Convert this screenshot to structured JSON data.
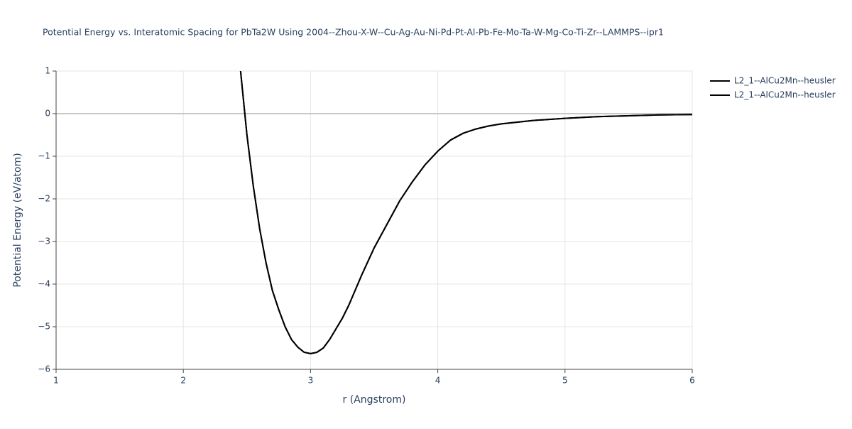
{
  "chart_data": {
    "type": "line",
    "title": "Potential Energy vs. Interatomic Spacing for PbTa2W Using 2004--Zhou-X-W--Cu-Ag-Au-Ni-Pd-Pt-Al-Pb-Fe-Mo-Ta-W-Mg-Co-Ti-Zr--LAMMPS--ipr1",
    "x_label": "r (Angstrom)",
    "y_label": "Potential Energy (eV/atom)",
    "x": [
      2.45,
      2.5,
      2.55,
      2.6,
      2.65,
      2.7,
      2.75,
      2.8,
      2.85,
      2.9,
      2.95,
      3.0,
      3.05,
      3.1,
      3.15,
      3.2,
      3.25,
      3.3,
      3.35,
      3.4,
      3.5,
      3.6,
      3.7,
      3.8,
      3.9,
      4.0,
      4.1,
      4.2,
      4.3,
      4.4,
      4.5,
      4.75,
      5.0,
      5.25,
      5.5,
      5.75,
      6.0
    ],
    "series": [
      {
        "name": "L2_1--AlCu2Mn--heusler",
        "color": "#000000",
        "values": [
          1.0,
          -0.5,
          -1.7,
          -2.7,
          -3.5,
          -4.15,
          -4.6,
          -5.0,
          -5.3,
          -5.48,
          -5.6,
          -5.63,
          -5.6,
          -5.5,
          -5.3,
          -5.05,
          -4.8,
          -4.5,
          -4.15,
          -3.8,
          -3.15,
          -2.6,
          -2.05,
          -1.6,
          -1.2,
          -0.88,
          -0.62,
          -0.46,
          -0.36,
          -0.29,
          -0.24,
          -0.16,
          -0.11,
          -0.07,
          -0.05,
          -0.03,
          -0.02
        ]
      },
      {
        "name": "L2_1--AlCu2Mn--heusler",
        "color": "#000000",
        "values": [
          1.0,
          -0.5,
          -1.7,
          -2.7,
          -3.5,
          -4.15,
          -4.6,
          -5.0,
          -5.3,
          -5.48,
          -5.6,
          -5.63,
          -5.6,
          -5.5,
          -5.3,
          -5.05,
          -4.8,
          -4.5,
          -4.15,
          -3.8,
          -3.15,
          -2.6,
          -2.05,
          -1.6,
          -1.2,
          -0.88,
          -0.62,
          -0.46,
          -0.36,
          -0.29,
          -0.24,
          -0.16,
          -0.11,
          -0.07,
          -0.05,
          -0.03,
          -0.02
        ]
      }
    ],
    "xlim": [
      1,
      6
    ],
    "xticks": [
      1,
      2,
      3,
      4,
      5,
      6
    ],
    "ylim": [
      -6,
      1
    ],
    "yticks": [
      1,
      0,
      {
        "value": -1,
        "label": "−1"
      },
      {
        "value": -2,
        "label": "−2"
      },
      {
        "value": -3,
        "label": "−3"
      },
      {
        "value": -4,
        "label": "−4"
      },
      {
        "value": -5,
        "label": "−5"
      },
      {
        "value": -6,
        "label": "−6"
      }
    ],
    "grid": true,
    "legend": "top-right"
  }
}
